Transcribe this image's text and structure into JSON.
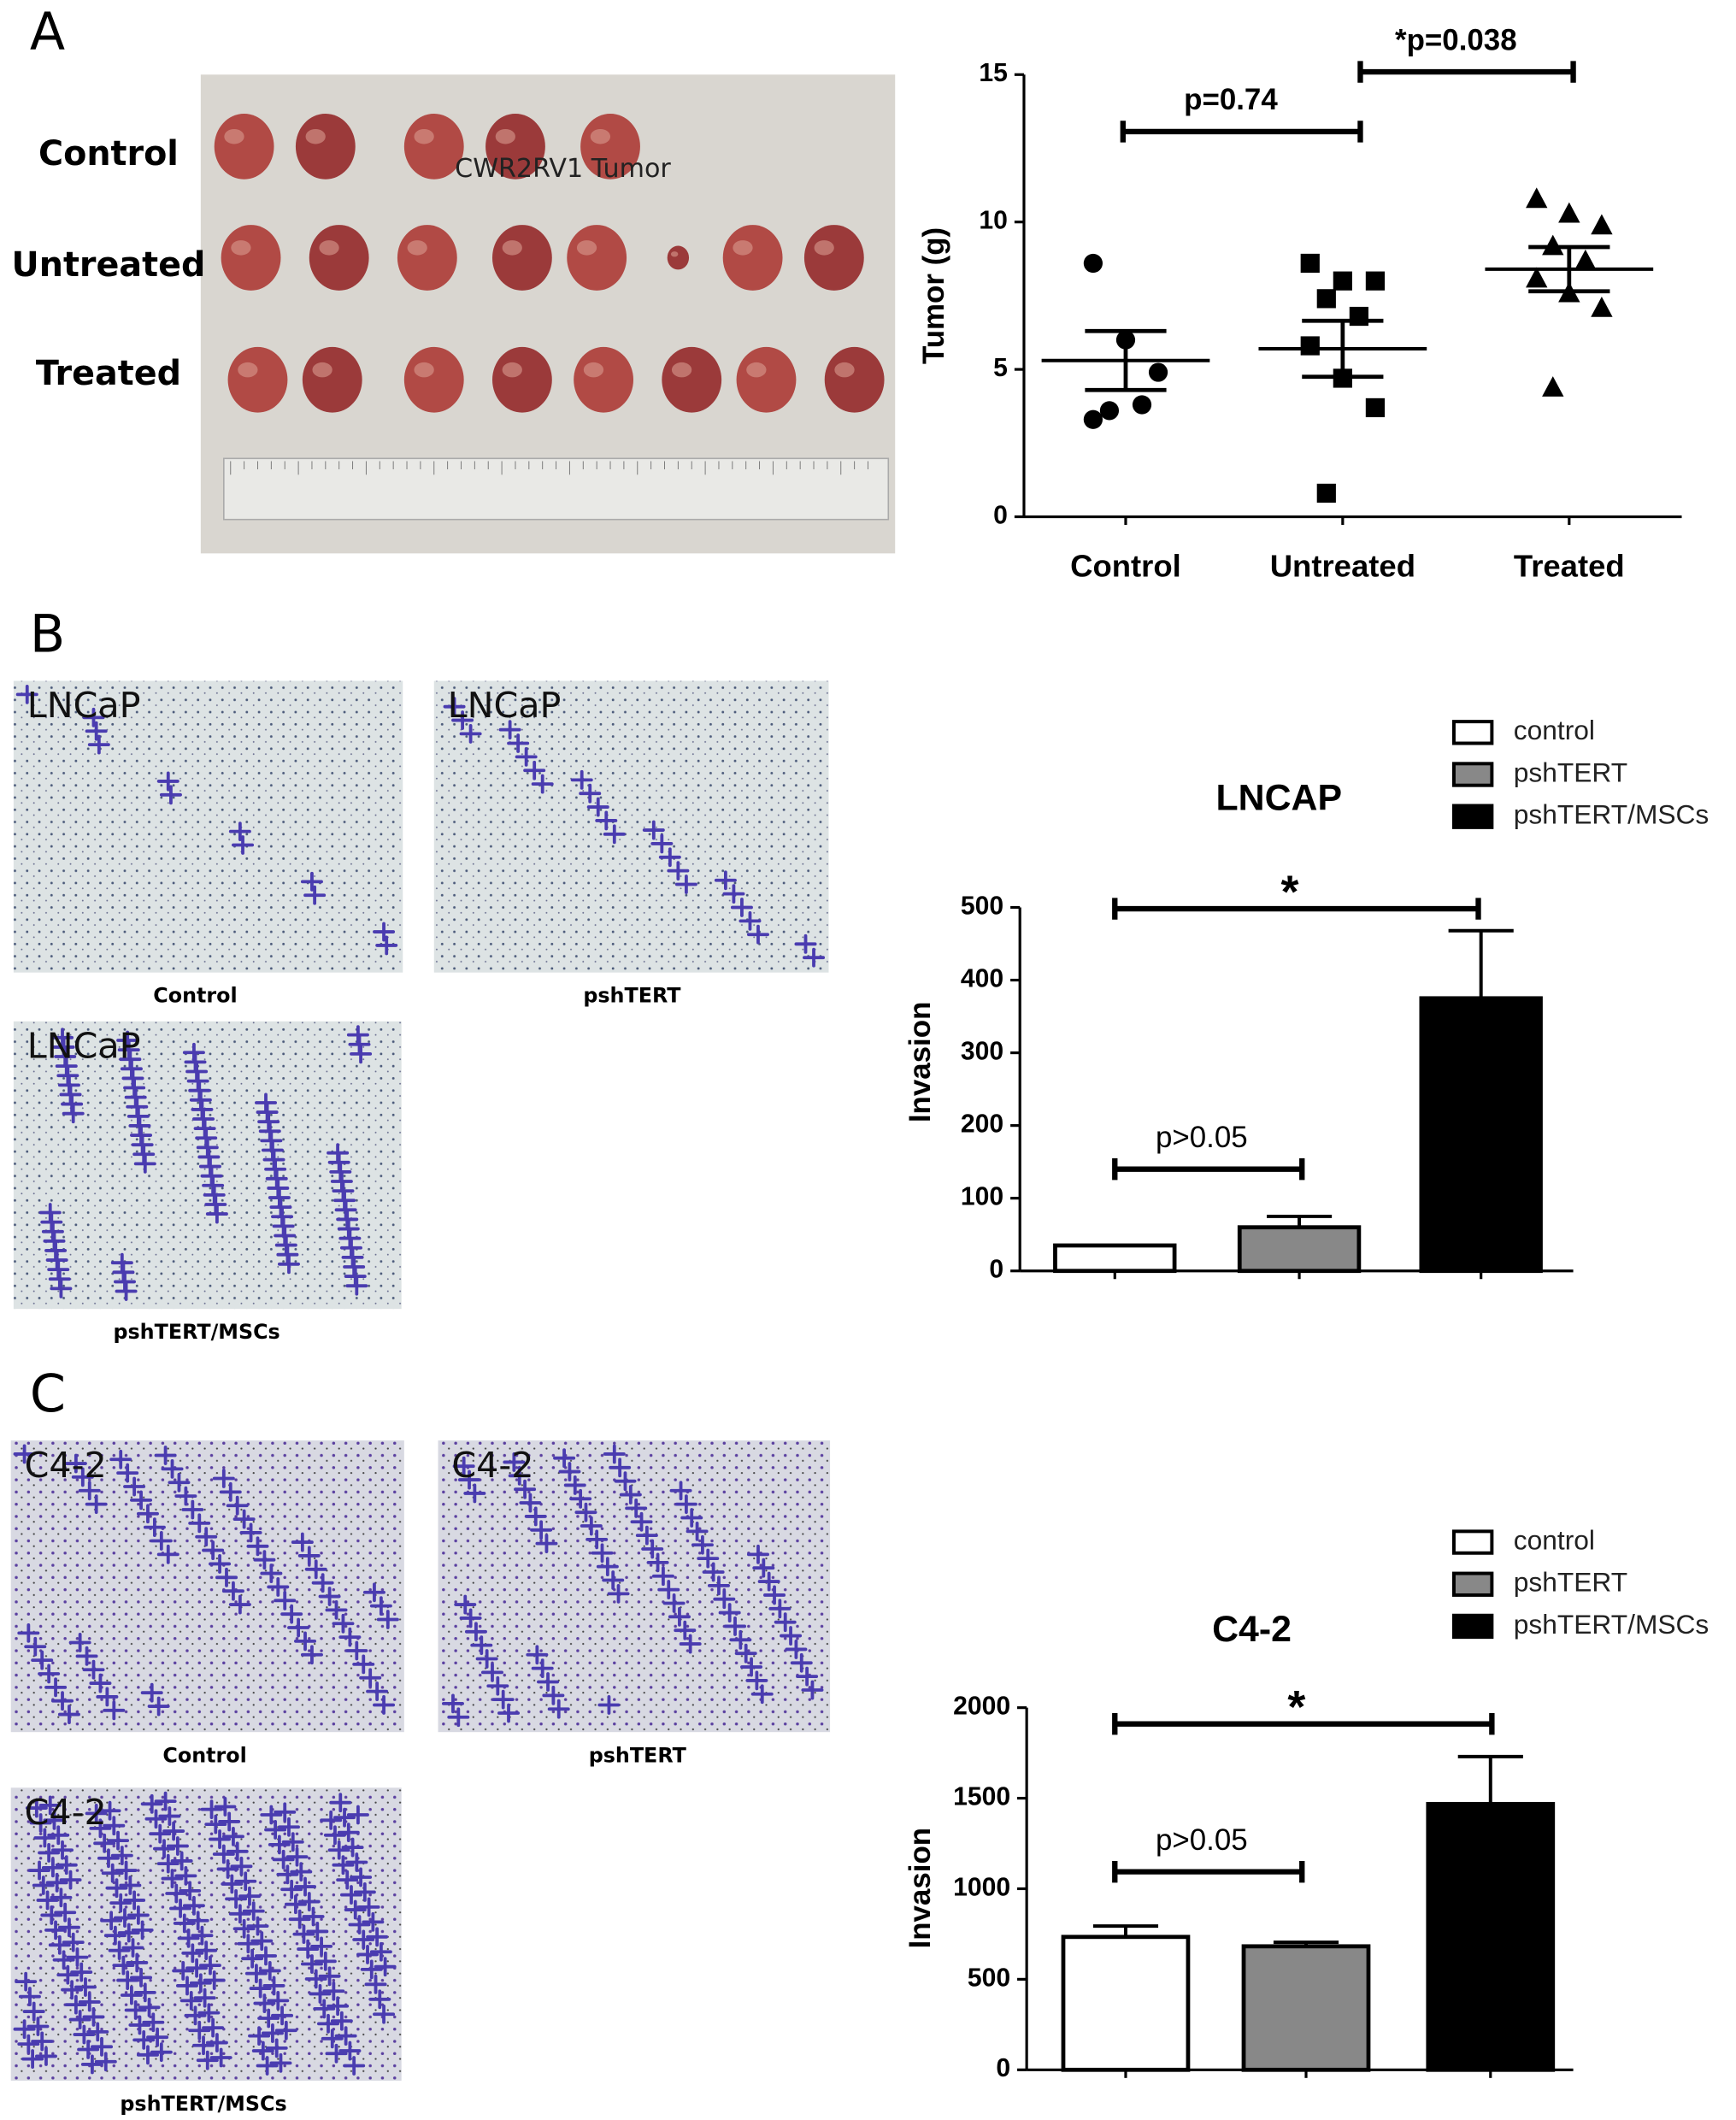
{
  "panels": [
    "A",
    "B",
    "C"
  ],
  "photos": {
    "tumor": {
      "caption": "CWR2RV1 Tumor",
      "rows": [
        "Control",
        "Untreated",
        "Treated"
      ]
    },
    "lncap": {
      "labels": [
        "LNCaP",
        "LNCaP",
        "LNCaP"
      ],
      "captions": [
        "Control",
        "pshTERT",
        "pshTERT/MSCs"
      ]
    },
    "c42": {
      "labels": [
        "C4-2",
        "C4-2",
        "C4-2"
      ],
      "captions": [
        "Control",
        "pshTERT",
        "pshTERT/MSCs"
      ]
    }
  },
  "chart_data": [
    {
      "type": "strip",
      "y_label": "Tumor (g)",
      "categories": [
        "Control",
        "Untreated",
        "Treated"
      ],
      "markers": [
        "circle",
        "square",
        "triangle"
      ],
      "color": "#000000",
      "groups": [
        {
          "values": [
            8.6,
            6.0,
            4.9,
            3.6,
            3.8,
            3.3
          ],
          "mean": 5.3,
          "sem": 1.0
        },
        {
          "values": [
            8.6,
            8.0,
            8.0,
            7.4,
            6.8,
            5.8,
            4.7,
            3.7,
            0.8
          ],
          "mean": 5.7,
          "sem": 0.95
        },
        {
          "values": [
            10.8,
            10.3,
            9.9,
            9.2,
            8.7,
            8.1,
            7.6,
            7.1,
            4.4
          ],
          "mean": 8.4,
          "sem": 0.75
        }
      ],
      "annotations": [
        "p=0.74",
        "*p=0.038"
      ],
      "ylim": [
        0,
        15
      ],
      "yticks": [
        0,
        5,
        10,
        15
      ]
    },
    {
      "type": "bar",
      "title": "LNCAP",
      "y_label": "Invasion",
      "categories": [
        "control",
        "pshTERT",
        "pshTERT/MSCs"
      ],
      "colors": [
        "#ffffff",
        "#888888",
        "#000000"
      ],
      "values": [
        35,
        60,
        375
      ],
      "errors": [
        0,
        15,
        93
      ],
      "annotations": [
        "*",
        "p>0.05"
      ],
      "legend": "top-right",
      "ylim": [
        0,
        500
      ],
      "yticks": [
        0,
        100,
        200,
        300,
        400,
        500
      ]
    },
    {
      "type": "bar",
      "title": "C4-2",
      "y_label": "Invasion",
      "categories": [
        "control",
        "pshTERT",
        "pshTERT/MSCs"
      ],
      "colors": [
        "#ffffff",
        "#888888",
        "#000000"
      ],
      "values": [
        734,
        682,
        1468
      ],
      "errors": [
        60,
        22,
        262
      ],
      "annotations": [
        "*",
        "p>0.05"
      ],
      "legend": "top-right",
      "ylim": [
        0,
        2000
      ],
      "yticks": [
        0,
        500,
        1000,
        1500,
        2000
      ]
    }
  ]
}
